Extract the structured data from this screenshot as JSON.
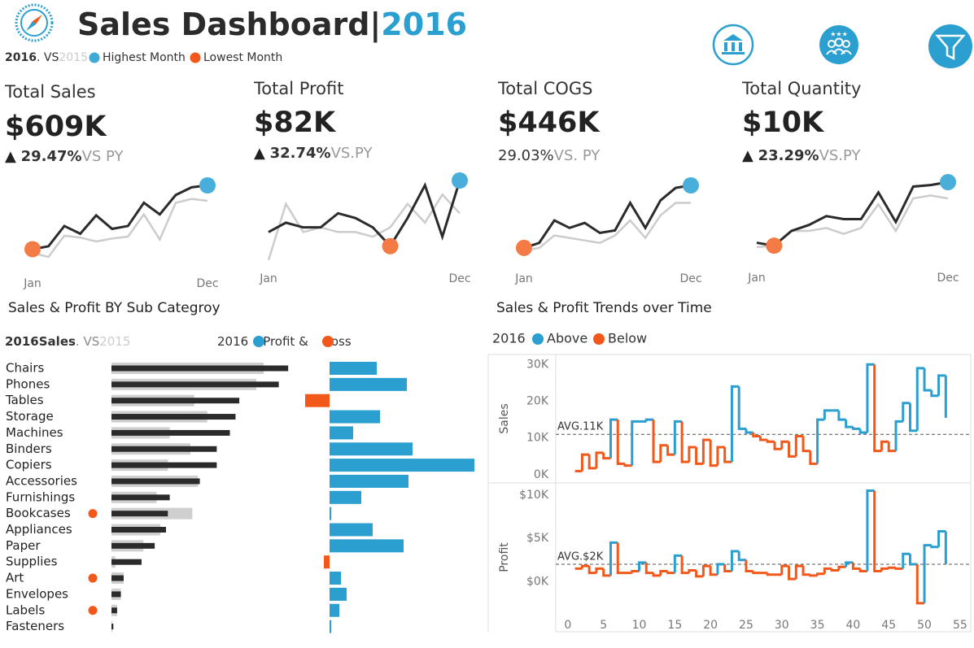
{
  "header": {
    "title": "Sales Dashboard",
    "bar": "|",
    "year": "2016",
    "legend": {
      "cur": "2016",
      "joiner": ". VS",
      "prev": "2015",
      "high": "Highest Month",
      "low": "Lowest Month"
    }
  },
  "kpis": [
    {
      "title": "Total Sales",
      "value": "$609K",
      "arrow": "▲",
      "change": "29.47%",
      "vs": "VS PY"
    },
    {
      "title": "Total Profit",
      "value": "$82K",
      "arrow": "▲",
      "change": "32.74%",
      "vs": "VS.PY"
    },
    {
      "title": "Total COGS",
      "value": "$446K",
      "change": "29.03%",
      "vs": "VS. PY"
    },
    {
      "title": "Total Quantity",
      "value": "$10K",
      "arrow": "▲",
      "change": "23.29%",
      "vs": "VS.PY"
    }
  ],
  "chart_data": [
    {
      "type": "sparkline",
      "categories": [
        "Jan",
        null,
        null,
        null,
        null,
        null,
        null,
        null,
        null,
        null,
        null,
        "Dec"
      ],
      "high_color": "#4aaedb",
      "low_color": "#f47a46",
      "series": [
        {
          "color": "#2b2b2b",
          "values": [
            14,
            17,
            38,
            30,
            49,
            35,
            38,
            62,
            50,
            70,
            78,
            80
          ]
        },
        {
          "color": "#cccccc",
          "values": [
            10,
            6,
            28,
            26,
            22,
            25,
            27,
            50,
            24,
            62,
            66,
            64
          ]
        }
      ]
    },
    {
      "type": "sparkline",
      "categories": [
        "Jan",
        null,
        null,
        null,
        null,
        null,
        null,
        null,
        null,
        null,
        null,
        "Dec"
      ],
      "high_color": "#4aaedb",
      "low_color": "#f47a46",
      "series": [
        {
          "color": "#2b2b2b",
          "values": [
            6,
            8,
            7,
            7,
            10,
            9,
            7,
            3,
            9,
            16,
            5,
            17
          ]
        },
        {
          "color": "#cccccc",
          "values": [
            0,
            12,
            6,
            7,
            6,
            6,
            5,
            7,
            12,
            8,
            14,
            10
          ]
        }
      ]
    },
    {
      "type": "sparkline",
      "categories": [
        "Jan",
        null,
        null,
        null,
        null,
        null,
        null,
        null,
        null,
        null,
        null,
        "Dec"
      ],
      "high_color": "#4aaedb",
      "low_color": "#f47a46",
      "series": [
        {
          "color": "#2b2b2b",
          "values": [
            8,
            12,
            30,
            24,
            28,
            20,
            22,
            44,
            24,
            46,
            56,
            58
          ]
        },
        {
          "color": "#cccccc",
          "values": [
            6,
            8,
            18,
            16,
            14,
            12,
            18,
            30,
            16,
            34,
            44,
            44
          ]
        }
      ]
    },
    {
      "type": "sparkline",
      "categories": [
        "Jan",
        null,
        null,
        null,
        null,
        null,
        null,
        null,
        null,
        null,
        null,
        "Dec"
      ],
      "high_color": "#4aaedb",
      "low_color": "#f47a46",
      "series": [
        {
          "color": "#2b2b2b",
          "values": [
            6,
            4,
            14,
            18,
            24,
            22,
            22,
            40,
            20,
            44,
            45,
            47
          ]
        },
        {
          "color": "#cccccc",
          "values": [
            3,
            4,
            14,
            14,
            16,
            12,
            16,
            32,
            14,
            36,
            38,
            36
          ]
        }
      ]
    },
    {
      "type": "hbar",
      "title": "Sales & Profit BY Sub Categroy",
      "legend_joiner": ". VS",
      "categories": [
        "Chairs",
        "Phones",
        "Tables",
        "Storage",
        "Machines",
        "Binders",
        "Copiers",
        "Accessories",
        "Furnishings",
        "Bookcases",
        "Appliances",
        "Paper",
        "Supplies",
        "Art",
        "Envelopes",
        "Labels",
        "Fasteners"
      ],
      "flagged": [
        false,
        false,
        false,
        false,
        false,
        false,
        false,
        false,
        false,
        true,
        false,
        false,
        false,
        true,
        false,
        true,
        false
      ],
      "flag_color": "#f2581a",
      "series": [
        {
          "name": "2016Sales",
          "color": "#2b2b2b",
          "values": [
            94,
            89,
            68,
            66,
            63,
            56,
            56,
            47,
            31,
            30,
            29,
            23,
            16,
            6.5,
            5,
            3,
            1
          ]
        },
        {
          "name": "2015",
          "color": "#cfcfcf",
          "values": [
            81,
            77,
            44,
            51,
            31,
            42,
            30,
            46,
            24,
            43,
            26,
            17,
            2,
            6.5,
            5,
            3,
            0.5
          ]
        }
      ]
    },
    {
      "type": "hbar-diverging",
      "legend": [
        "2016",
        "Profit &",
        "Loss"
      ],
      "pos_color": "#2a9fd0",
      "neg_color": "#f2581a",
      "values": [
        5.8,
        9.5,
        -3.0,
        6.2,
        2.9,
        10.2,
        17.8,
        9.7,
        3.9,
        0.2,
        5.3,
        9.1,
        -0.7,
        1.4,
        2.1,
        1.2,
        0.2
      ]
    },
    {
      "type": "step",
      "title": "Sales & Profit Trends over Time",
      "legend": [
        "2016",
        "Above",
        "Below"
      ],
      "ylabel": "Sales",
      "above_color": "#2a9fd0",
      "below_color": "#f2581a",
      "avg": 11000,
      "avg_label": "AVG.11K",
      "xlim": [
        -1.7,
        56.5
      ],
      "xticks": [
        0,
        5,
        10,
        15,
        20,
        25,
        30,
        35,
        40,
        45,
        50,
        55
      ],
      "ylim": [
        -2000,
        32500
      ],
      "yticks": [
        {
          "value": 0,
          "label": "0K"
        },
        {
          "value": 10000,
          "label": "10K"
        },
        {
          "value": 20000,
          "label": "20K"
        },
        {
          "value": 30000,
          "label": "30K"
        }
      ],
      "x": [
        1,
        2,
        3,
        4,
        5,
        6,
        7,
        8,
        9,
        10,
        11,
        12,
        13,
        14,
        15,
        16,
        17,
        18,
        19,
        20,
        21,
        22,
        23,
        24,
        25,
        26,
        27,
        28,
        29,
        30,
        31,
        32,
        33,
        34,
        35,
        36,
        37,
        38,
        39,
        40,
        41,
        42,
        43,
        44,
        45,
        46,
        47,
        48,
        49,
        50,
        51,
        52,
        53
      ],
      "values": [
        1000,
        5500,
        1800,
        6000,
        4500,
        15000,
        3000,
        2500,
        14500,
        14500,
        15000,
        3500,
        8000,
        5500,
        14500,
        3500,
        7500,
        3000,
        9500,
        2500,
        7500,
        3500,
        24000,
        12500,
        11500,
        10500,
        9500,
        9000,
        7000,
        9000,
        5000,
        10500,
        6500,
        3000,
        15000,
        17500,
        17500,
        15000,
        13000,
        12500,
        11500,
        30000,
        6500,
        9000,
        6500,
        14500,
        19500,
        12000,
        29000,
        23000,
        21500,
        27000,
        15500
      ]
    },
    {
      "type": "step",
      "ylabel": "Profit",
      "above_color": "#2a9fd0",
      "below_color": "#f2581a",
      "avg": 2000,
      "avg_label": "AVG.$2K",
      "xlim": [
        -1.7,
        56.5
      ],
      "ylim": [
        -5700,
        11300
      ],
      "yticks": [
        {
          "value": 0,
          "label": "$0K"
        },
        {
          "value": 5000,
          "label": "$5K"
        },
        {
          "value": 10000,
          "label": "$10K"
        }
      ],
      "x": [
        1,
        2,
        3,
        4,
        5,
        6,
        7,
        8,
        9,
        10,
        11,
        12,
        13,
        14,
        15,
        16,
        17,
        18,
        19,
        20,
        21,
        22,
        23,
        24,
        25,
        26,
        27,
        28,
        29,
        30,
        31,
        32,
        33,
        34,
        35,
        36,
        37,
        38,
        39,
        40,
        41,
        42,
        43,
        44,
        45,
        46,
        47,
        48,
        49,
        50,
        51,
        52,
        53
      ],
      "values": [
        1500,
        1800,
        1000,
        1500,
        700,
        4500,
        1000,
        1000,
        1200,
        2200,
        1000,
        700,
        1200,
        1000,
        3000,
        1000,
        1300,
        600,
        1800,
        800,
        2000,
        1200,
        3500,
        2500,
        1200,
        1000,
        1000,
        800,
        800,
        1800,
        300,
        1800,
        800,
        700,
        900,
        1500,
        1300,
        1700,
        2200,
        1500,
        1200,
        10500,
        1200,
        1500,
        1600,
        1500,
        3200,
        2000,
        -2500,
        4200,
        4000,
        5800,
        2000
      ]
    }
  ]
}
